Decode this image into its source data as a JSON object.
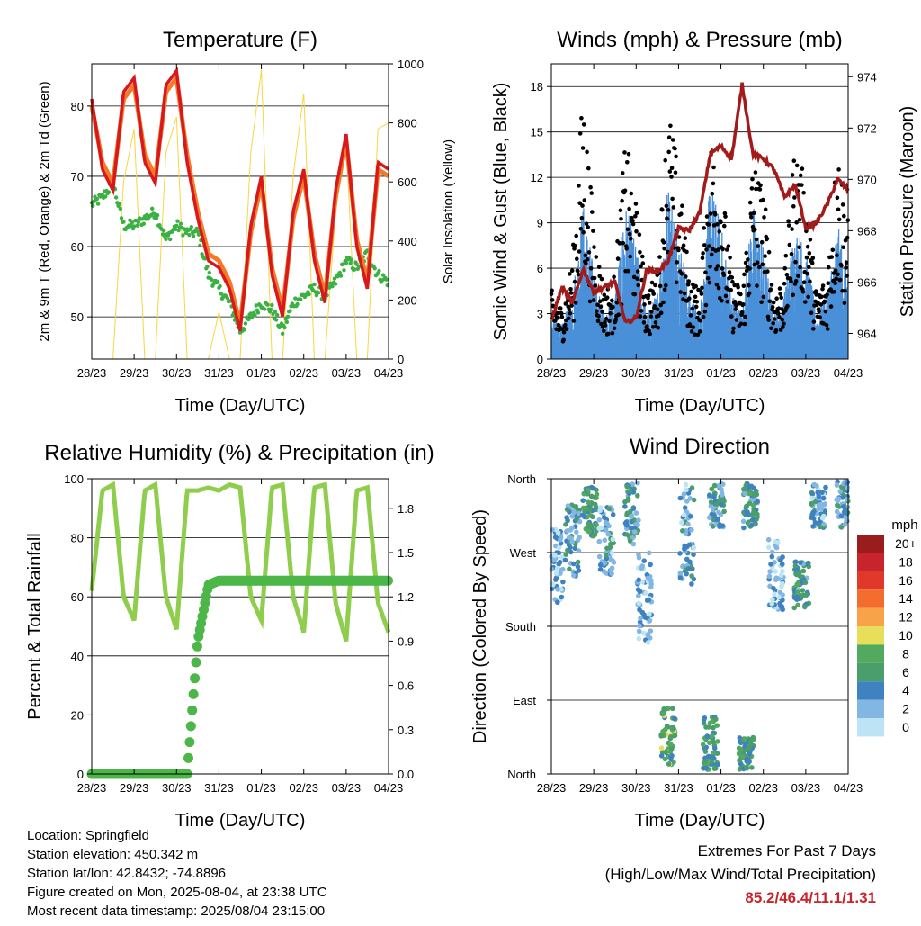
{
  "colors": {
    "temp_red": "#d7191c",
    "temp_orange": "#f47a2a",
    "dewpoint_green": "#3bb143",
    "insolation_yellow": "#f5d742",
    "wind_blue": "#4a90d9",
    "gust_black": "#000000",
    "pressure_maroon": "#a31a1a",
    "rh_lightgreen": "#8fcd4c",
    "precip_green": "#4cb748",
    "extremes_red": "#c8242b"
  },
  "x_ticks": [
    "28/23",
    "29/23",
    "30/23",
    "31/23",
    "01/23",
    "02/23",
    "03/23",
    "04/23"
  ],
  "x_label": "Time (Day/UTC)",
  "chart_data": [
    {
      "type": "line",
      "title": "Temperature (F)",
      "xlabel": "Time (Day/UTC)",
      "ylabel": "2m & 9m T (Red, Orange) & 2m Td (Green)",
      "ylabel_right": "Solar Insolation (Yellow)",
      "ylim": [
        44,
        86
      ],
      "yticks": [
        50,
        60,
        70,
        80
      ],
      "ylim_right": [
        0,
        1000
      ],
      "yticks_right": [
        0,
        200,
        400,
        600,
        800,
        1000
      ],
      "x": [
        0,
        0.25,
        0.5,
        0.75,
        1.0,
        1.25,
        1.5,
        1.75,
        2.0,
        2.25,
        2.5,
        2.75,
        3.0,
        3.25,
        3.5,
        3.75,
        4.0,
        4.25,
        4.5,
        4.75,
        5.0,
        5.25,
        5.5,
        5.75,
        6.0,
        6.25,
        6.5,
        6.75,
        7.0
      ],
      "series": [
        {
          "name": "2m T",
          "values": [
            81,
            71,
            68,
            82,
            84,
            72,
            69,
            83,
            85,
            72,
            64,
            58,
            57,
            54,
            48,
            63,
            70,
            56,
            50,
            65,
            71,
            58,
            52,
            68,
            76,
            60,
            54,
            72,
            71
          ]
        },
        {
          "name": "9m T",
          "values": [
            80,
            72,
            69,
            81,
            83,
            73,
            70,
            82,
            84,
            73,
            65,
            59,
            58,
            55,
            49,
            62,
            69,
            57,
            51,
            64,
            70,
            59,
            53,
            67,
            75,
            61,
            55,
            71,
            70
          ]
        },
        {
          "name": "2m Td",
          "values": [
            66,
            67,
            69,
            63,
            63,
            64,
            65,
            61,
            63,
            62,
            62,
            56,
            54,
            52,
            48,
            50,
            52,
            51,
            48,
            52,
            53,
            54,
            53,
            55,
            58,
            57,
            59,
            56,
            55
          ]
        },
        {
          "name": "Solar Insolation",
          "axis": "right",
          "values": [
            0,
            0,
            0,
            600,
            780,
            0,
            0,
            700,
            820,
            0,
            0,
            0,
            160,
            0,
            0,
            700,
            980,
            0,
            0,
            620,
            900,
            0,
            0,
            500,
            740,
            0,
            0,
            780,
            800
          ]
        }
      ]
    },
    {
      "type": "line",
      "title": "Winds (mph) & Pressure (mb)",
      "xlabel": "Time (Day/UTC)",
      "ylabel": "Sonic Wind & Gust (Blue, Black)",
      "ylabel_right": "Station Pressure (Maroon)",
      "ylim": [
        0,
        19.5
      ],
      "yticks": [
        0,
        3,
        6,
        9,
        12,
        15,
        18
      ],
      "ylim_right": [
        963,
        974.5
      ],
      "yticks_right": [
        964,
        966,
        968,
        970,
        972,
        974
      ],
      "x": [
        0,
        0.25,
        0.5,
        0.75,
        1.0,
        1.25,
        1.5,
        1.75,
        2.0,
        2.25,
        2.5,
        2.75,
        3.0,
        3.25,
        3.5,
        3.75,
        4.0,
        4.25,
        4.5,
        4.75,
        5.0,
        5.25,
        5.5,
        5.75,
        6.0,
        6.25,
        6.5,
        6.75,
        7.0
      ],
      "series": [
        {
          "name": "Sonic Wind",
          "values": [
            2,
            1.5,
            3,
            7,
            4,
            2,
            3,
            7,
            5,
            2,
            3,
            8,
            6,
            3,
            2,
            8,
            6,
            3,
            2,
            7,
            5,
            2,
            3,
            6,
            5,
            2,
            3,
            6,
            4
          ]
        },
        {
          "name": "Gust",
          "values": [
            4,
            3,
            6,
            16,
            8,
            4,
            5,
            13,
            9,
            4,
            5,
            15,
            11,
            5,
            4,
            13,
            11,
            5,
            4,
            12,
            10,
            4,
            5,
            13,
            10,
            4,
            5,
            13,
            8
          ]
        },
        {
          "name": "Station Pressure",
          "axis": "right",
          "values": [
            964.5,
            965.8,
            965.2,
            966.5,
            965.6,
            965.8,
            966.0,
            964.4,
            964.6,
            966.5,
            966.4,
            966.8,
            968.1,
            968.0,
            968.7,
            971.0,
            971.3,
            970.8,
            973.7,
            971.0,
            970.8,
            970.4,
            969.3,
            969.8,
            968.1,
            968.3,
            969.0,
            970.0,
            969.6
          ]
        }
      ]
    },
    {
      "type": "line",
      "title": "Relative Humidity (%) & Precipitation (in)",
      "xlabel": "Time (Day/UTC)",
      "ylabel": "Percent & Total Rainfall",
      "ylim": [
        0,
        100
      ],
      "yticks": [
        0,
        20,
        40,
        60,
        80,
        100
      ],
      "ylim_right": [
        0,
        2.0
      ],
      "yticks_right": [
        "0.0",
        "0.3",
        "0.6",
        "0.9",
        "1.2",
        "1.5",
        "1.8"
      ],
      "x": [
        0,
        0.25,
        0.5,
        0.75,
        1.0,
        1.25,
        1.5,
        1.75,
        2.0,
        2.25,
        2.5,
        2.75,
        3.0,
        3.25,
        3.5,
        3.75,
        4.0,
        4.25,
        4.5,
        4.75,
        5.0,
        5.25,
        5.5,
        5.75,
        6.0,
        6.25,
        6.5,
        6.75,
        7.0
      ],
      "series": [
        {
          "name": "Relative Humidity",
          "values": [
            62,
            96,
            98,
            60,
            52,
            96,
            98,
            60,
            49,
            96,
            96,
            97,
            96,
            98,
            97,
            60,
            52,
            97,
            98,
            60,
            48,
            97,
            98,
            58,
            45,
            96,
            97,
            58,
            48
          ]
        },
        {
          "name": "Total Rainfall",
          "axis": "right",
          "values": [
            0,
            0,
            0,
            0,
            0,
            0,
            0,
            0,
            0,
            0,
            0.9,
            1.28,
            1.31,
            1.31,
            1.31,
            1.31,
            1.31,
            1.31,
            1.31,
            1.31,
            1.31,
            1.31,
            1.31,
            1.31,
            1.31,
            1.31,
            1.31,
            1.31,
            1.31
          ]
        }
      ]
    },
    {
      "type": "scatter",
      "title": "Wind Direction",
      "xlabel": "Time (Day/UTC)",
      "ylabel": "Direction (Colored By Speed)",
      "yticks": [
        "North",
        "West",
        "South",
        "East",
        "North"
      ],
      "ylim": [
        0,
        360
      ],
      "colorbar": {
        "title": "mph",
        "labels": [
          "20+",
          "18",
          "16",
          "14",
          "12",
          "10",
          "8",
          "6",
          "4",
          "2",
          "0"
        ],
        "colors": [
          "#9b1c1c",
          "#c8242b",
          "#e0392b",
          "#f46d2f",
          "#f8a24a",
          "#e8de5a",
          "#53aa5e",
          "#4a9e6b",
          "#3f82c0",
          "#82b6e3",
          "#bde4f4"
        ]
      },
      "clusters": [
        {
          "x": 0.1,
          "dir_range": [
            200,
            300
          ],
          "speed": 2
        },
        {
          "x": 0.5,
          "dir_range": [
            240,
            330
          ],
          "speed": 4
        },
        {
          "x": 0.9,
          "dir_range": [
            290,
            350
          ],
          "speed": 6
        },
        {
          "x": 1.3,
          "dir_range": [
            240,
            330
          ],
          "speed": 3
        },
        {
          "x": 1.9,
          "dir_range": [
            280,
            355
          ],
          "speed": 4
        },
        {
          "x": 2.2,
          "dir_range": [
            160,
            270
          ],
          "speed": 2
        },
        {
          "x": 2.75,
          "dir_range": [
            10,
            80
          ],
          "speed": 7
        },
        {
          "x": 3.2,
          "dir_range": [
            230,
            355
          ],
          "speed": 3
        },
        {
          "x": 3.75,
          "dir_range": [
            5,
            70
          ],
          "speed": 6
        },
        {
          "x": 3.9,
          "dir_range": [
            300,
            358
          ],
          "speed": 4
        },
        {
          "x": 4.6,
          "dir_range": [
            5,
            45
          ],
          "speed": 6
        },
        {
          "x": 4.7,
          "dir_range": [
            300,
            355
          ],
          "speed": 5
        },
        {
          "x": 5.3,
          "dir_range": [
            200,
            290
          ],
          "speed": 2
        },
        {
          "x": 5.9,
          "dir_range": [
            200,
            260
          ],
          "speed": 5
        },
        {
          "x": 6.3,
          "dir_range": [
            300,
            355
          ],
          "speed": 3
        },
        {
          "x": 6.9,
          "dir_range": [
            300,
            358
          ],
          "speed": 4
        }
      ]
    }
  ],
  "info": {
    "location": "Location: Springfield",
    "elevation": "Station elevation: 450.342 m",
    "latlon": "Station lat/lon: 42.8432; -74.8896",
    "created": "Figure created on Mon, 2025-08-04, at 23:38 UTC",
    "recent": "Most recent data timestamp: 2025/08/04 23:15:00"
  },
  "extremes": {
    "heading": "Extremes For Past 7 Days",
    "subheading": "(High/Low/Max Wind/Total Precipitation)",
    "values": "85.2/46.4/11.1/1.31"
  }
}
